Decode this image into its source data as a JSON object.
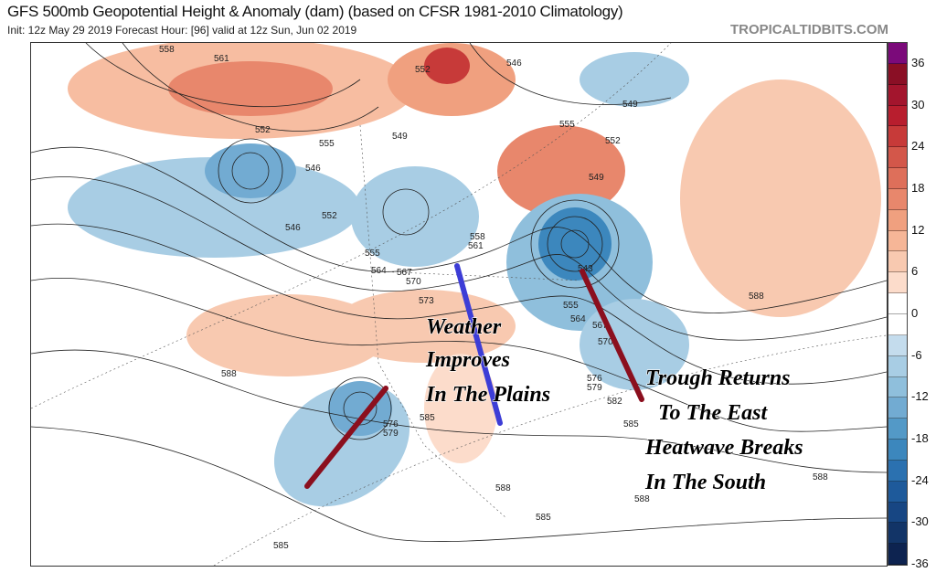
{
  "header": {
    "title": "GFS 500mb Geopotential Height & Anomaly (dam) (based on CFSR 1981-2010 Climatology)",
    "subtitle": "Init: 12z May 29 2019   Forecast Hour: [96]   valid at 12z Sun, Jun 02 2019",
    "brand": "TROPICALTIDBITS.COM"
  },
  "colorbar": {
    "ticks": [
      "36",
      "30",
      "24",
      "18",
      "12",
      "6",
      "0",
      "-6",
      "-12",
      "-18",
      "-24",
      "-30",
      "-36"
    ],
    "colors": [
      "#7b0a7a",
      "#8a0f25",
      "#a3152d",
      "#b81e2e",
      "#c73a39",
      "#d3574a",
      "#de6f5a",
      "#e8876c",
      "#f0a07f",
      "#f6b697",
      "#f8c9b0",
      "#fcdccb",
      "#ffffff",
      "#ffffff",
      "#c4dced",
      "#a8cde4",
      "#8fbfdc",
      "#72abd2",
      "#5399c7",
      "#3c87bd",
      "#2b71b0",
      "#1e5a9b",
      "#174683",
      "#123467",
      "#0d2350"
    ]
  },
  "contour_labels": [
    "558",
    "561",
    "552",
    "555",
    "549",
    "546",
    "552",
    "555",
    "549",
    "546",
    "552",
    "549",
    "555",
    "558",
    "561",
    "564",
    "567",
    "570",
    "573",
    "543",
    "555",
    "564",
    "567",
    "570",
    "576",
    "579",
    "582",
    "585",
    "576",
    "579",
    "588",
    "588",
    "588",
    "585",
    "585",
    "585",
    "588",
    "588",
    "552",
    "546"
  ],
  "annotations": [
    "Weather",
    "Improves",
    "In The Plains",
    "Trough Returns",
    "To The East",
    "Heatwave Breaks",
    "In The South"
  ],
  "marker_colors": {
    "blue": "#3d3dd6",
    "red": "#8b0f1e"
  }
}
